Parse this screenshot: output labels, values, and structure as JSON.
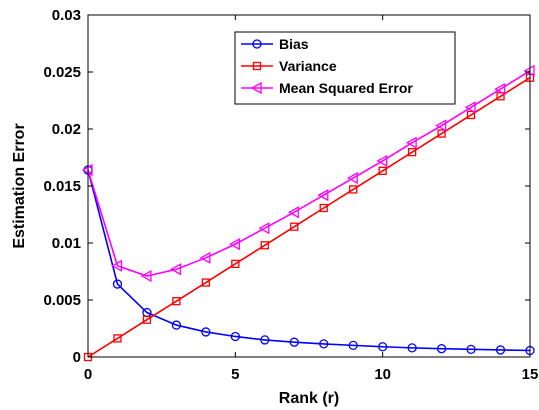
{
  "chart_data": {
    "type": "line",
    "title": "",
    "xlabel": "Rank (r)",
    "ylabel": "Estimation Error",
    "xlim": [
      0,
      15
    ],
    "ylim": [
      0,
      0.03
    ],
    "xticks": [
      0,
      5,
      10,
      15
    ],
    "yticks": [
      0,
      0.005,
      0.01,
      0.015,
      0.02,
      0.025,
      0.03
    ],
    "xtick_labels": [
      "0",
      "5",
      "10",
      "15"
    ],
    "ytick_labels": [
      "0",
      "0.005",
      "0.01",
      "0.015",
      "0.02",
      "0.025",
      "0.03"
    ],
    "grid": false,
    "legend_position": "top-right",
    "x": [
      0,
      1,
      2,
      3,
      4,
      5,
      6,
      7,
      8,
      9,
      10,
      11,
      12,
      13,
      14,
      15
    ],
    "series": [
      {
        "name": "Bias",
        "color": "#0000ff",
        "marker": "circle",
        "values": [
          0.0164,
          0.0064,
          0.0039,
          0.0028,
          0.0022,
          0.0018,
          0.0015,
          0.0013,
          0.00115,
          0.00102,
          0.0009,
          0.0008,
          0.00073,
          0.00067,
          0.00062,
          0.00057
        ]
      },
      {
        "name": "Variance",
        "color": "#ff0000",
        "marker": "square",
        "values": [
          0.0,
          0.00163,
          0.00327,
          0.0049,
          0.00653,
          0.00817,
          0.0098,
          0.01143,
          0.01307,
          0.0147,
          0.01633,
          0.01797,
          0.0196,
          0.02123,
          0.02287,
          0.0245
        ]
      },
      {
        "name": "Mean Squared Error",
        "color": "#ff00ff",
        "marker": "triangle-left",
        "values": [
          0.0164,
          0.008,
          0.0071,
          0.0077,
          0.0087,
          0.0099,
          0.0113,
          0.0127,
          0.0142,
          0.0157,
          0.0172,
          0.0188,
          0.0203,
          0.0219,
          0.0235,
          0.0251
        ]
      }
    ]
  }
}
